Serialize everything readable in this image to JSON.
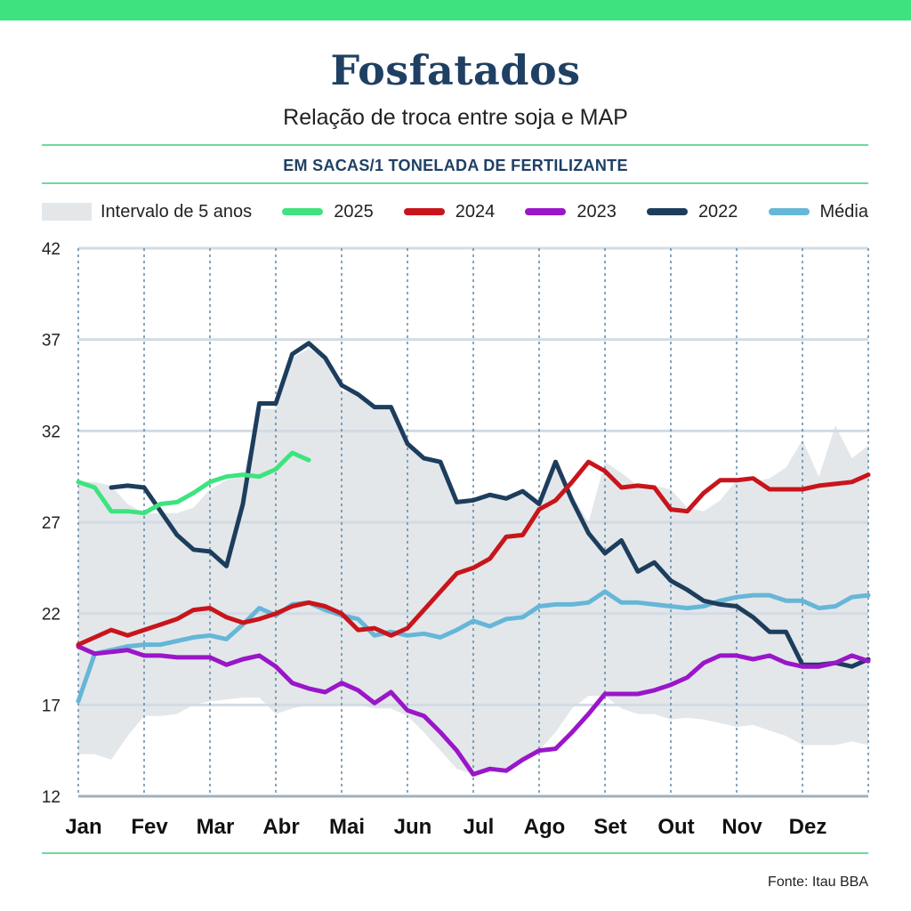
{
  "header": {
    "title": "Fosfatados",
    "subtitle": "Relação de troca entre soja e MAP",
    "unit_label": "EM SACAS/1 TONELADA DE FERTILIZANTE"
  },
  "legend": {
    "band_label": "Intervalo de 5 anos",
    "items": [
      {
        "label": "2025",
        "color": "#3ee37f"
      },
      {
        "label": "2024",
        "color": "#c8151b"
      },
      {
        "label": "2023",
        "color": "#9a16c9"
      },
      {
        "label": "2022",
        "color": "#1d3d5c"
      },
      {
        "label": "Média",
        "color": "#66b6d8"
      }
    ]
  },
  "source": "Fonte: Itau BBA",
  "colors": {
    "accent": "#3ee37f",
    "title": "#1f4063",
    "band": "#e3e7ea",
    "grid": "#d3dbe3",
    "vgrid": "#5e88a8"
  },
  "chart_data": {
    "type": "line",
    "title": "Fosfatados",
    "subtitle": "Relação de troca entre soja e MAP",
    "ylabel": "EM SACAS/1 TONELADA DE FERTILIZANTE",
    "xlabel": "",
    "x_unit": "month index (0 = Jan, 12 = end of Dez)",
    "categories": [
      "Jan",
      "Fev",
      "Mar",
      "Abr",
      "Mai",
      "Jun",
      "Jul",
      "Ago",
      "Set",
      "Out",
      "Nov",
      "Dez"
    ],
    "ylim": [
      12,
      42
    ],
    "yticks": [
      12,
      17,
      22,
      27,
      32,
      37,
      42
    ],
    "xlim": [
      0,
      12
    ],
    "grid": true,
    "legend_position": "top",
    "band": {
      "name": "Intervalo de 5 anos",
      "x": [
        0,
        0.25,
        0.5,
        0.75,
        1,
        1.25,
        1.5,
        1.75,
        2,
        2.25,
        2.5,
        2.75,
        3,
        3.25,
        3.5,
        3.75,
        4,
        4.25,
        4.5,
        4.75,
        5,
        5.25,
        5.5,
        5.75,
        6,
        6.25,
        6.5,
        6.75,
        7,
        7.25,
        7.5,
        7.75,
        8,
        8.25,
        8.5,
        8.75,
        9,
        9.25,
        9.5,
        9.75,
        10,
        10.25,
        10.5,
        10.75,
        11,
        11.25,
        11.5,
        11.75,
        12
      ],
      "upper": [
        29.2,
        29.2,
        29.0,
        28.0,
        27.5,
        27.5,
        27.5,
        27.8,
        28.8,
        29.3,
        29.5,
        33.2,
        33.2,
        36.0,
        36.5,
        36.0,
        34.2,
        34.0,
        33.2,
        33.2,
        31.3,
        30.5,
        30.3,
        28.1,
        28.0,
        28.5,
        28.3,
        28.7,
        28.0,
        30.3,
        28.5,
        27.0,
        30.3,
        29.7,
        29.0,
        29.0,
        28.8,
        27.8,
        27.6,
        28.2,
        29.3,
        29.2,
        29.4,
        30.0,
        31.5,
        29.5,
        32.3,
        30.5,
        31.2
      ],
      "lower": [
        14.3,
        14.3,
        14.0,
        15.3,
        16.4,
        16.4,
        16.5,
        17.0,
        17.2,
        17.3,
        17.4,
        17.4,
        16.5,
        16.8,
        17.0,
        17.0,
        17.0,
        17.0,
        16.8,
        16.8,
        16.4,
        15.5,
        14.5,
        13.5,
        13.2,
        13.3,
        13.5,
        14.0,
        14.5,
        15.5,
        16.8,
        17.5,
        17.5,
        16.8,
        16.5,
        16.5,
        16.2,
        16.3,
        16.2,
        16.0,
        15.8,
        15.9,
        15.6,
        15.3,
        14.8,
        14.8,
        14.8,
        15.0,
        14.8
      ]
    },
    "series": [
      {
        "name": "2025",
        "color": "#3ee37f",
        "x": [
          0,
          0.25,
          0.5,
          0.75,
          1,
          1.25,
          1.5,
          1.75,
          2,
          2.25,
          2.5,
          2.75,
          3,
          3.25,
          3.5,
          3.75
        ],
        "y": [
          29.2,
          28.9,
          27.6,
          27.6,
          27.5,
          28.0,
          28.1,
          28.6,
          29.2,
          29.5,
          29.6,
          29.5,
          29.9,
          30.8,
          30.4,
          null
        ]
      },
      {
        "name": "2024",
        "color": "#c8151b",
        "x": [
          0,
          0.25,
          0.5,
          0.75,
          1,
          1.25,
          1.5,
          1.75,
          2,
          2.25,
          2.5,
          2.75,
          3,
          3.25,
          3.5,
          3.75,
          4,
          4.25,
          4.5,
          4.75,
          5,
          5.25,
          5.5,
          5.75,
          6,
          6.25,
          6.5,
          6.75,
          7,
          7.25,
          7.5,
          7.75,
          8,
          8.25,
          8.5,
          8.75,
          9,
          9.25,
          9.5,
          9.75,
          10,
          10.25,
          10.5,
          10.75,
          11,
          11.25,
          11.5,
          11.75,
          12
        ],
        "y": [
          20.3,
          20.7,
          21.1,
          20.8,
          21.1,
          21.4,
          21.7,
          22.2,
          22.3,
          21.8,
          21.5,
          21.7,
          22.0,
          22.4,
          22.6,
          22.4,
          22.0,
          21.1,
          21.2,
          20.8,
          21.2,
          22.2,
          23.2,
          24.2,
          24.5,
          25.0,
          26.2,
          26.3,
          27.7,
          28.2,
          29.2,
          30.3,
          29.8,
          28.9,
          29.0,
          28.9,
          27.7,
          27.6,
          28.6,
          29.3,
          29.3,
          29.4,
          28.8,
          28.8,
          28.8,
          29.0,
          29.1,
          29.2,
          29.6
        ]
      },
      {
        "name": "2023",
        "color": "#9a16c9",
        "x": [
          0,
          0.25,
          0.5,
          0.75,
          1,
          1.25,
          1.5,
          1.75,
          2,
          2.25,
          2.5,
          2.75,
          3,
          3.25,
          3.5,
          3.75,
          4,
          4.25,
          4.5,
          4.75,
          5,
          5.25,
          5.5,
          5.75,
          6,
          6.25,
          6.5,
          6.75,
          7,
          7.25,
          7.5,
          7.75,
          8,
          8.25,
          8.5,
          8.75,
          9,
          9.25,
          9.5,
          9.75,
          10,
          10.25,
          10.5,
          10.75,
          11,
          11.25,
          11.5,
          11.75,
          12
        ],
        "y": [
          20.2,
          19.8,
          19.9,
          20.0,
          19.7,
          19.7,
          19.6,
          19.6,
          19.6,
          19.2,
          19.5,
          19.7,
          19.1,
          18.2,
          17.9,
          17.7,
          18.2,
          17.8,
          17.1,
          17.7,
          16.7,
          16.4,
          15.5,
          14.5,
          13.2,
          13.5,
          13.4,
          14.0,
          14.5,
          14.6,
          15.5,
          16.5,
          17.6,
          17.6,
          17.6,
          17.8,
          18.1,
          18.5,
          19.3,
          19.7,
          19.7,
          19.5,
          19.7,
          19.3,
          19.1,
          19.1,
          19.3,
          19.7,
          19.4
        ]
      },
      {
        "name": "2022",
        "color": "#1d3d5c",
        "x": [
          0.5,
          0.75,
          1,
          1.25,
          1.5,
          1.75,
          2,
          2.25,
          2.5,
          2.75,
          3,
          3.25,
          3.5,
          3.75,
          4,
          4.25,
          4.5,
          4.75,
          5,
          5.25,
          5.5,
          5.75,
          6,
          6.25,
          6.5,
          6.75,
          7,
          7.25,
          7.5,
          7.75,
          8,
          8.25,
          8.5,
          8.75,
          9,
          9.25,
          9.5,
          9.75,
          10,
          10.25,
          10.5,
          10.75,
          11,
          11.25,
          11.5,
          11.75,
          12
        ],
        "y": [
          28.9,
          29.0,
          28.9,
          27.6,
          26.3,
          25.5,
          25.4,
          24.6,
          28.0,
          33.5,
          33.5,
          36.2,
          36.8,
          36.0,
          34.5,
          34.0,
          33.3,
          33.3,
          31.3,
          30.5,
          30.3,
          28.1,
          28.2,
          28.5,
          28.3,
          28.7,
          28.0,
          30.3,
          28.2,
          26.4,
          25.3,
          26.0,
          24.3,
          24.8,
          23.8,
          23.3,
          22.7,
          22.5,
          22.4,
          21.8,
          21.0,
          21.0,
          19.2,
          19.2,
          19.3,
          19.1,
          19.5
        ]
      },
      {
        "name": "Média",
        "color": "#66b6d8",
        "x": [
          0,
          0.25,
          0.5,
          0.75,
          1,
          1.25,
          1.5,
          1.75,
          2,
          2.25,
          2.5,
          2.75,
          3,
          3.25,
          3.5,
          3.75,
          4,
          4.25,
          4.5,
          4.75,
          5,
          5.25,
          5.5,
          5.75,
          6,
          6.25,
          6.5,
          6.75,
          7,
          7.25,
          7.5,
          7.75,
          8,
          8.25,
          8.5,
          8.75,
          9,
          9.25,
          9.5,
          9.75,
          10,
          10.25,
          10.5,
          10.75,
          11,
          11.25,
          11.5,
          11.75,
          12
        ],
        "y": [
          17.2,
          19.8,
          20.0,
          20.2,
          20.3,
          20.3,
          20.5,
          20.7,
          20.8,
          20.6,
          21.4,
          22.3,
          21.9,
          22.5,
          22.6,
          22.2,
          21.9,
          21.7,
          20.8,
          21.0,
          20.8,
          20.9,
          20.7,
          21.1,
          21.6,
          21.3,
          21.7,
          21.8,
          22.4,
          22.5,
          22.5,
          22.6,
          23.2,
          22.6,
          22.6,
          22.5,
          22.4,
          22.3,
          22.4,
          22.7,
          22.9,
          23.0,
          23.0,
          22.7,
          22.7,
          22.3,
          22.4,
          22.9,
          23.0
        ]
      }
    ]
  }
}
